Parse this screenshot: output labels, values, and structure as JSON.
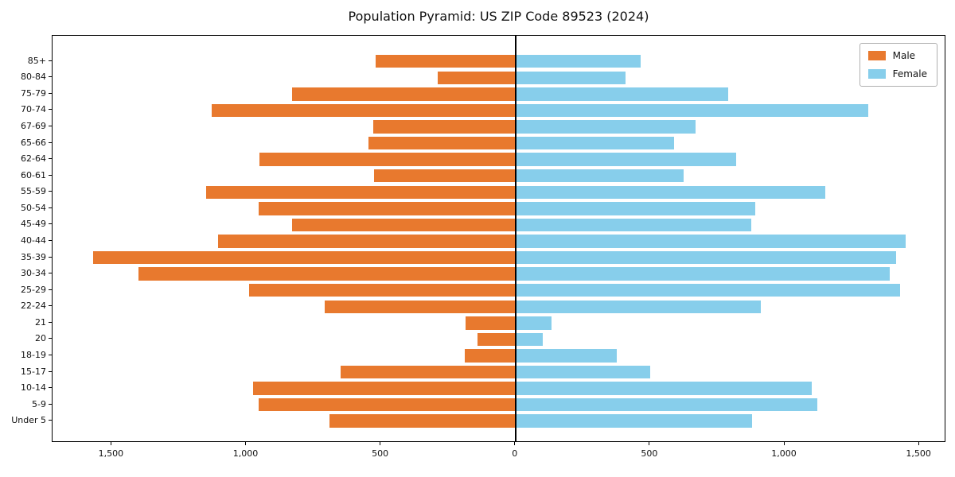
{
  "chart_data": {
    "type": "bar",
    "variant": "population-pyramid",
    "title": "Population Pyramid: US ZIP Code 89523 (2024)",
    "categories": [
      "85+",
      "80-84",
      "75-79",
      "70-74",
      "67-69",
      "65-66",
      "62-64",
      "60-61",
      "55-59",
      "50-54",
      "45-49",
      "40-44",
      "35-39",
      "30-34",
      "25-29",
      "22-24",
      "21",
      "20",
      "18-19",
      "15-17",
      "10-14",
      "5-9",
      "Under 5"
    ],
    "series": [
      {
        "name": "Male",
        "color": "#e8792e",
        "values": [
          520,
          290,
          830,
          1130,
          530,
          545,
          950,
          525,
          1150,
          955,
          830,
          1105,
          1570,
          1400,
          990,
          710,
          185,
          140,
          190,
          650,
          975,
          955,
          690
        ]
      },
      {
        "name": "Female",
        "color": "#87ceeb",
        "values": [
          465,
          410,
          790,
          1310,
          670,
          590,
          820,
          625,
          1150,
          890,
          875,
          1450,
          1415,
          1390,
          1430,
          910,
          135,
          100,
          375,
          500,
          1100,
          1120,
          880
        ]
      }
    ],
    "xlim": [
      -1720,
      1600
    ],
    "xticks": [
      -1500,
      -1000,
      -500,
      0,
      500,
      1000,
      1500
    ],
    "xtick_labels": [
      "1,500",
      "1,000",
      "500",
      "0",
      "500",
      "1,000",
      "1,500"
    ],
    "legend_position": "upper right",
    "grid": false,
    "zero_axis_line": true
  }
}
